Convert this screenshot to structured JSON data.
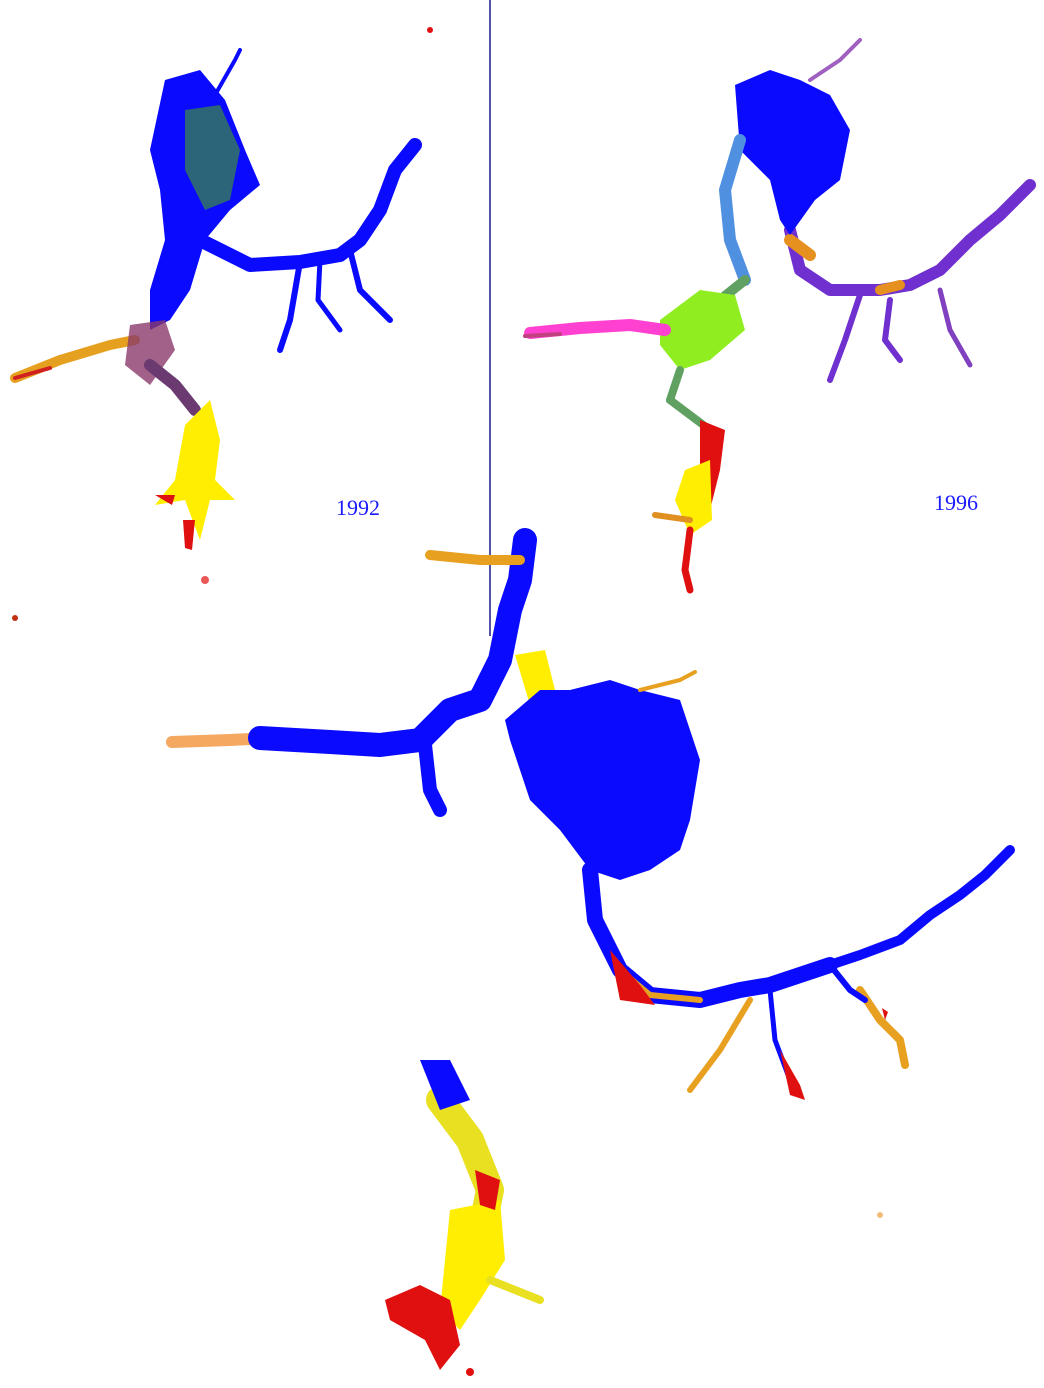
{
  "panels": [
    {
      "label": "1992"
    },
    {
      "label": "1996"
    }
  ]
}
